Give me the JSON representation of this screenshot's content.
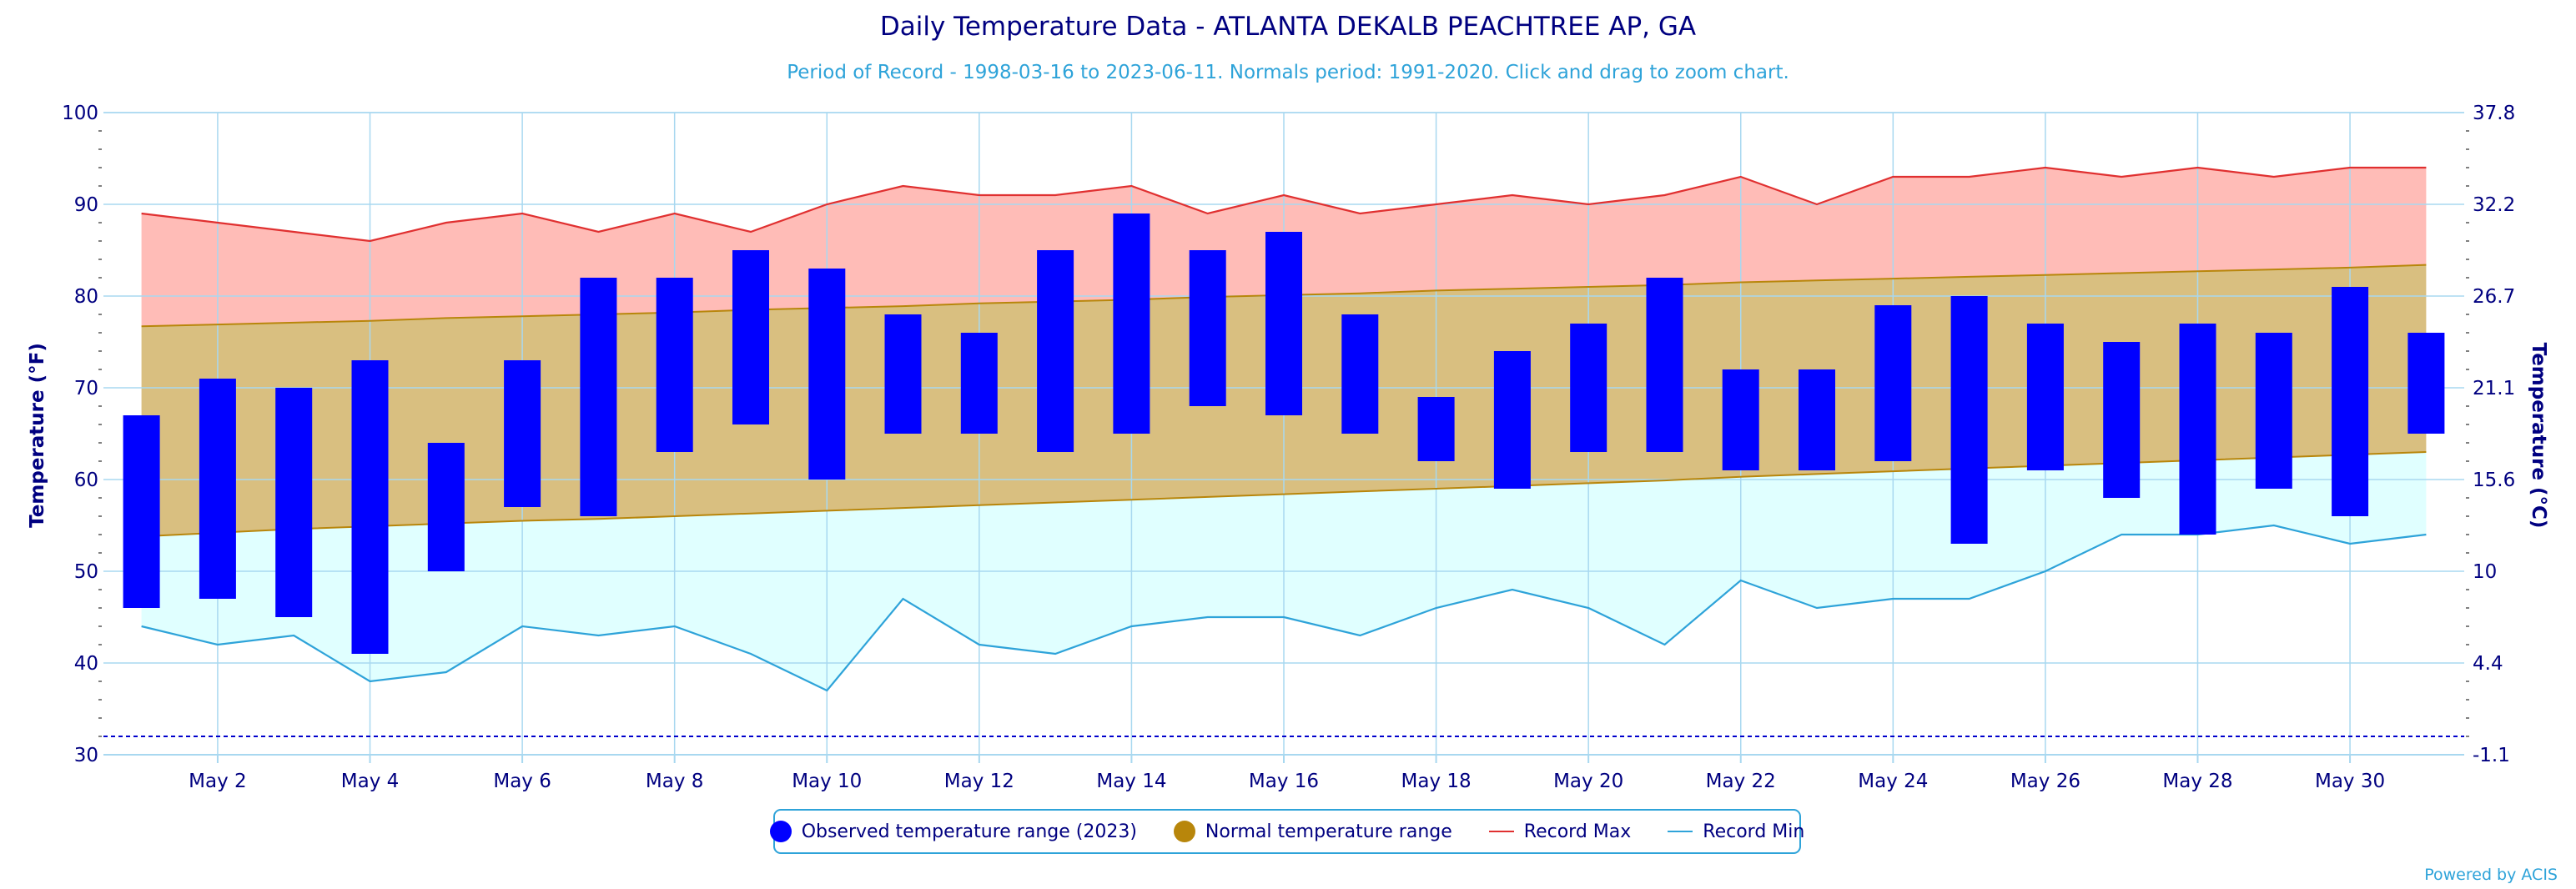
{
  "header": {
    "title": "Daily Temperature Data - ATLANTA DEKALB PEACHTREE AP, GA",
    "subtitle": "Period of Record - 1998-03-16 to 2023-06-11. Normals period: 1991-2020. Click and drag to zoom chart."
  },
  "legend": {
    "observed": "Observed temperature range (2023)",
    "normal": "Normal temperature range",
    "record_max": "Record Max",
    "record_min": "Record Min"
  },
  "footer": {
    "credit": "Powered by ACIS"
  },
  "chart_data": {
    "type": "bar",
    "xlabel": "",
    "ylabel": "Temperature (°F)",
    "ylabel_right": "Temperature (°C)",
    "ylim": [
      30,
      100
    ],
    "yticks": [
      30,
      40,
      50,
      60,
      70,
      80,
      90,
      100
    ],
    "yticks_right": [
      "-1.1",
      "4.4",
      "10",
      "15.6",
      "21.1",
      "26.7",
      "32.2",
      "37.8"
    ],
    "xlim_days": [
      0.5,
      31.5
    ],
    "x_tick_days": [
      2,
      4,
      6,
      8,
      10,
      12,
      14,
      16,
      18,
      20,
      22,
      24,
      26,
      28,
      30
    ],
    "x_tick_labels": [
      "May 2",
      "May 4",
      "May 6",
      "May 8",
      "May 10",
      "May 12",
      "May 14",
      "May 16",
      "May 18",
      "May 20",
      "May 22",
      "May 24",
      "May 26",
      "May 28",
      "May 30"
    ],
    "days": [
      1,
      2,
      3,
      4,
      5,
      6,
      7,
      8,
      9,
      10,
      11,
      12,
      13,
      14,
      15,
      16,
      17,
      18,
      19,
      20,
      21,
      22,
      23,
      24,
      25,
      26,
      27,
      28,
      29,
      30,
      31
    ],
    "observed_high": [
      67,
      71,
      70,
      73,
      64,
      73,
      82,
      82,
      85,
      83,
      78,
      76,
      85,
      89,
      85,
      87,
      78,
      69,
      74,
      77,
      82,
      72,
      72,
      79,
      80,
      77,
      75,
      77,
      76,
      81,
      76
    ],
    "observed_low": [
      46,
      47,
      45,
      41,
      50,
      57,
      56,
      63,
      66,
      60,
      65,
      65,
      63,
      65,
      68,
      67,
      65,
      62,
      59,
      63,
      63,
      61,
      61,
      62,
      53,
      61,
      58,
      54,
      59,
      56,
      65
    ],
    "normal_high": [
      76.7,
      76.9,
      77.1,
      77.3,
      77.6,
      77.8,
      78.0,
      78.2,
      78.5,
      78.7,
      78.9,
      79.2,
      79.4,
      79.6,
      79.9,
      80.1,
      80.3,
      80.6,
      80.8,
      81.0,
      81.2,
      81.5,
      81.7,
      81.9,
      82.1,
      82.3,
      82.5,
      82.7,
      82.9,
      83.1,
      83.4
    ],
    "normal_low": [
      53.8,
      54.2,
      54.6,
      54.9,
      55.2,
      55.5,
      55.7,
      56.0,
      56.3,
      56.6,
      56.9,
      57.2,
      57.5,
      57.8,
      58.1,
      58.4,
      58.7,
      59.0,
      59.3,
      59.6,
      59.9,
      60.3,
      60.6,
      60.9,
      61.2,
      61.5,
      61.8,
      62.1,
      62.4,
      62.7,
      63.0
    ],
    "record_max": [
      89,
      88,
      87,
      86,
      88,
      89,
      87,
      89,
      87,
      90,
      92,
      91,
      91,
      92,
      89,
      91,
      89,
      90,
      91,
      90,
      91,
      93,
      90,
      93,
      93,
      94,
      93,
      94,
      93,
      94,
      94
    ],
    "record_min": [
      44,
      42,
      43,
      38,
      39,
      44,
      43,
      44,
      41,
      37,
      47,
      42,
      41,
      44,
      45,
      45,
      43,
      46,
      48,
      46,
      42,
      49,
      46,
      47,
      47,
      50,
      54,
      54,
      55,
      53,
      54
    ],
    "reference_line": 32,
    "colors": {
      "observed": "#0000ff",
      "normal": "#b8860b",
      "normal_fill": "#d9bf80",
      "record_max": "#e03030",
      "record_max_fill": "#ffbcb7",
      "record_min": "#2ea3d9",
      "record_min_fill": "#e0ffff",
      "grid": "#a8d8f0",
      "axis_text": "#000080"
    }
  }
}
